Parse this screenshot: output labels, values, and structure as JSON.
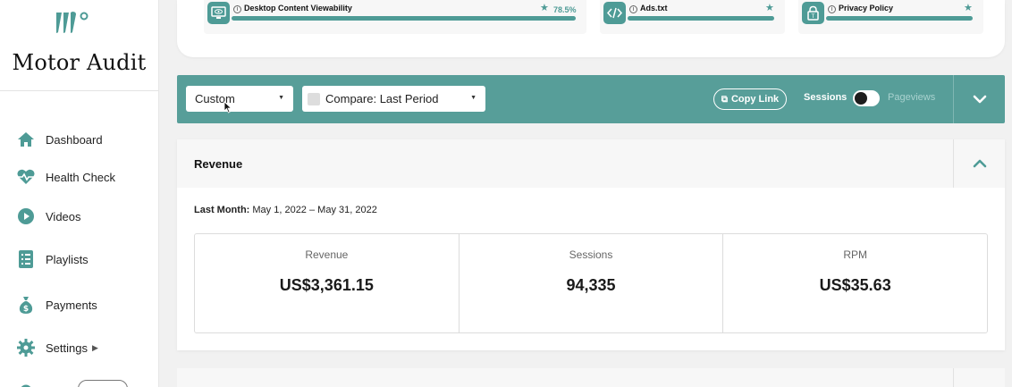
{
  "brand": {
    "site_name": "Motor Audit",
    "accent_color": "#579e99"
  },
  "sidebar": {
    "items": [
      {
        "label": "Dashboard",
        "icon": "home-icon"
      },
      {
        "label": "Health Check",
        "icon": "heartbeat-icon"
      },
      {
        "label": "Videos",
        "icon": "play-circle-icon"
      },
      {
        "label": "Playlists",
        "icon": "list-icon"
      },
      {
        "label": "Payments",
        "icon": "money-bag-icon"
      },
      {
        "label": "Settings",
        "icon": "gear-icon",
        "submenu": true
      }
    ]
  },
  "health_checks": [
    {
      "title": "Desktop Content Viewability",
      "icon": "monitor-eye-icon",
      "score": "78.5%",
      "starred": true
    },
    {
      "title": "Ads.txt",
      "icon": "code-icon",
      "starred": true
    },
    {
      "title": "Privacy Policy",
      "icon": "lock-icon",
      "starred": true
    }
  ],
  "toolbar": {
    "date_range": "Custom",
    "compare": "Compare: Last Period",
    "copy_link": "Copy Link",
    "toggle_left": "Sessions",
    "toggle_right": "Pageviews"
  },
  "revenue_panel": {
    "title": "Revenue",
    "period_label": "Last Month:",
    "period_value": "May 1, 2022 – May 31, 2022",
    "stats": [
      {
        "label": "Revenue",
        "value": "US$3,361.15"
      },
      {
        "label": "Sessions",
        "value": "94,335"
      },
      {
        "label": "RPM",
        "value": "US$35.63"
      }
    ]
  }
}
